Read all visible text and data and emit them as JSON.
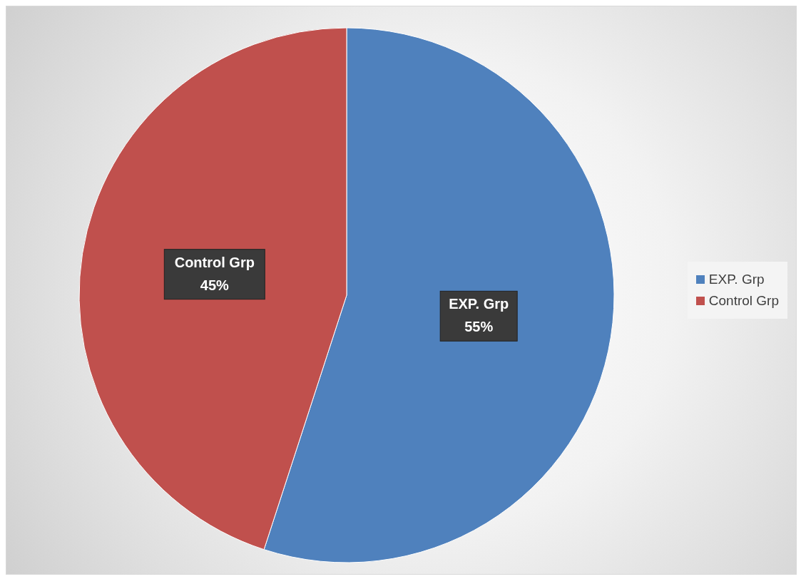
{
  "chart_data": {
    "type": "pie",
    "categories": [
      "EXP. Grp",
      "Control Grp"
    ],
    "values": [
      55,
      45
    ],
    "colors": [
      "#4f81bd",
      "#c0504d"
    ],
    "value_labels": [
      "55%",
      "45%"
    ],
    "legend": "right"
  }
}
